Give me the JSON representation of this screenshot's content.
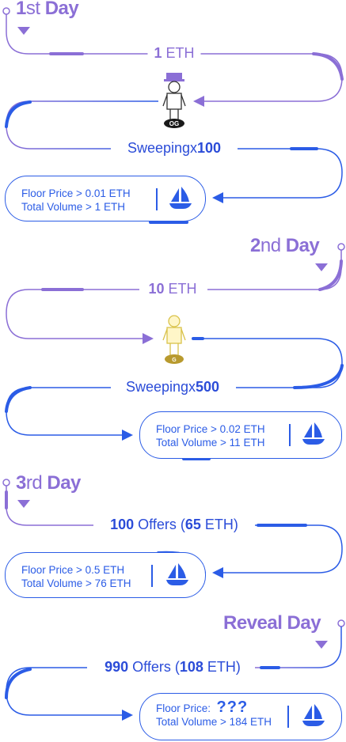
{
  "days": {
    "day1": {
      "num": "1",
      "suffix": "st",
      "word": "Day"
    },
    "day2": {
      "num": "2",
      "suffix": "nd",
      "word": "Day"
    },
    "day3": {
      "num": "3",
      "suffix": "rd",
      "word": "Day"
    },
    "reveal": {
      "word": "Reveal Day"
    }
  },
  "labels": {
    "l1": {
      "bold": "1",
      "rest": " ETH"
    },
    "l2": {
      "prefix": "Sweepingx",
      "bold": "100"
    },
    "l3": {
      "bold": "10",
      "rest": " ETH"
    },
    "l4": {
      "prefix": "Sweepingx",
      "bold": "500"
    },
    "l5": {
      "bold1": "100",
      "mid": " Offers (",
      "bold2": "65",
      "end": " ETH)"
    },
    "l6": {
      "bold1": "990",
      "mid": " Offers (",
      "bold2": "108",
      "end": " ETH)"
    }
  },
  "cards": {
    "c1": {
      "floor": "Floor Price > 0.01 ETH",
      "volume": "Total Volume > 1 ETH"
    },
    "c2": {
      "floor": "Floor Price > 0.02 ETH",
      "volume": "Total Volume > 11 ETH"
    },
    "c3": {
      "floor": "Floor Price > 0.5 ETH",
      "volume": "Total Volume > 76 ETH"
    },
    "c4": {
      "floor_label": "Floor Price:",
      "floor_value": "???",
      "volume": "Total Volume > 184 ETH"
    }
  },
  "figures": {
    "f1": {
      "badge": "OG",
      "color": "#6b4fc8"
    },
    "f2": {
      "badge": "G",
      "color": "#d9c24a"
    }
  },
  "colors": {
    "purple": "#8b6fd6",
    "blue": "#2b5ce6",
    "deep_blue": "#1f3fd1"
  },
  "icons": [
    "boat-icon",
    "down-triangle-icon",
    "right-arrow-icon",
    "left-arrow-icon",
    "node-circle-icon"
  ]
}
